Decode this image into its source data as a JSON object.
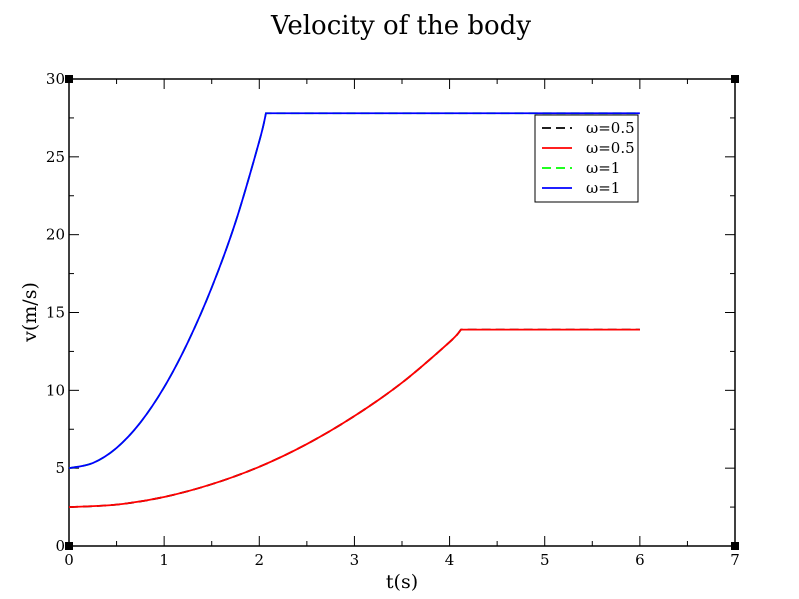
{
  "chart_data": {
    "type": "line",
    "title": "Velocity of the body",
    "xlabel": "t(s)",
    "ylabel": "v(m/s)",
    "xlim": [
      0,
      7
    ],
    "ylim": [
      0,
      30
    ],
    "xticks": [
      0,
      1,
      2,
      3,
      4,
      5,
      6,
      7
    ],
    "yticks": [
      0,
      5,
      10,
      15,
      20,
      25,
      30
    ],
    "grid": false,
    "legend_position": "top-right",
    "series": [
      {
        "name": "ω=0.5",
        "color": "#000000",
        "dash": "dashed",
        "x": [
          0,
          0.5,
          1,
          1.5,
          2,
          2.5,
          3,
          3.5,
          4,
          4.12,
          6
        ],
        "y": [
          2.5,
          2.66,
          3.15,
          3.97,
          5.09,
          6.55,
          8.35,
          10.49,
          13.1,
          13.9,
          13.9
        ]
      },
      {
        "name": "ω=0.5",
        "color": "#ff0000",
        "dash": "solid",
        "x": [
          0,
          0.5,
          1,
          1.5,
          2,
          2.5,
          3,
          3.5,
          4,
          4.12,
          6
        ],
        "y": [
          2.5,
          2.66,
          3.15,
          3.97,
          5.09,
          6.55,
          8.35,
          10.49,
          13.1,
          13.9,
          13.9
        ]
      },
      {
        "name": "ω=1",
        "color": "#00ff00",
        "dash": "dashed",
        "x": [
          0,
          0.25,
          0.5,
          0.75,
          1,
          1.25,
          1.5,
          1.75,
          2,
          2.07,
          6
        ],
        "y": [
          5.0,
          5.33,
          6.3,
          7.93,
          10.2,
          13.1,
          16.6,
          20.8,
          26.0,
          27.8,
          27.8
        ]
      },
      {
        "name": "ω=1",
        "color": "#0000ff",
        "dash": "solid",
        "x": [
          0,
          0.25,
          0.5,
          0.75,
          1,
          1.25,
          1.5,
          1.75,
          2,
          2.07,
          6
        ],
        "y": [
          5.0,
          5.33,
          6.3,
          7.93,
          10.2,
          13.1,
          16.6,
          20.8,
          26.0,
          27.8,
          27.8
        ]
      }
    ]
  }
}
